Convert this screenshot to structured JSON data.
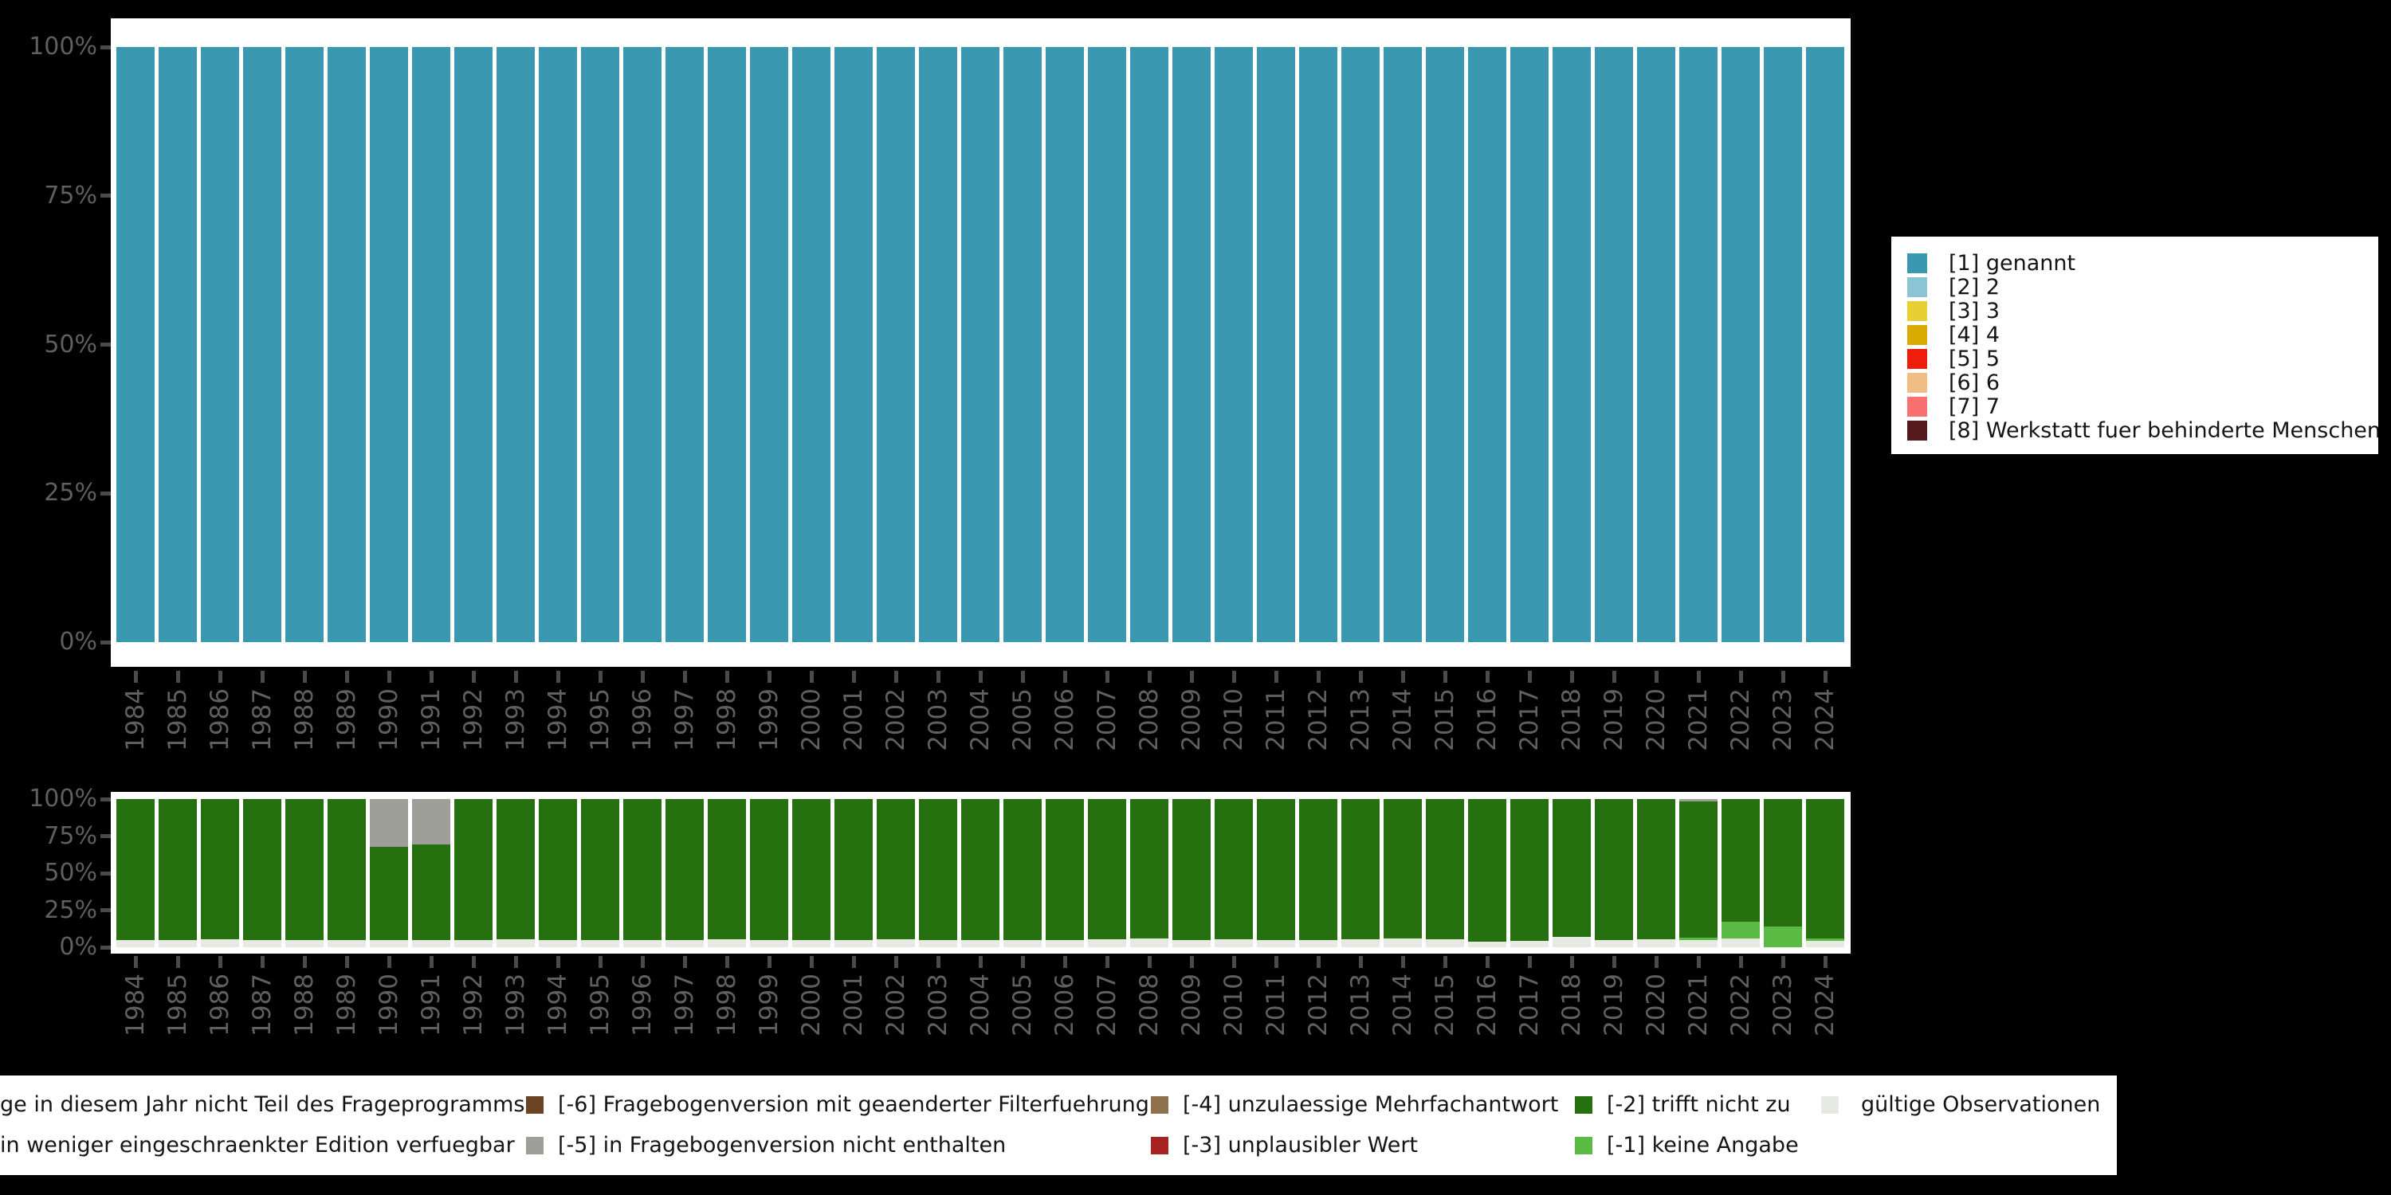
{
  "page_background": "#000000",
  "colors": {
    "genannt_teal": "#3a98b0",
    "trifft_nicht_zu_green": "#27700f",
    "keine_angabe_lightgreen": "#5abb44",
    "nicht_enthalten_gray": "#9f9f99",
    "gueltige_obs_lightgray": "#e6eae2",
    "unplausibel_red": "#a82222",
    "mehrfachantwort_brown": "#8f7150",
    "filterfuehrung_darkbrown": "#6b4425",
    "axis_text": "#5f5f5f",
    "axis_tick": "#4a4a4a"
  },
  "chart_data": [
    {
      "id": "valid-answers-by-year",
      "type": "bar",
      "stacked": true,
      "unit": "percent",
      "title": "",
      "xlabel": "",
      "ylabel": "",
      "ylim": [
        0,
        100
      ],
      "grid": false,
      "legend_position": "right",
      "yticks": [
        "100%",
        "75%",
        "50%",
        "25%",
        "0%"
      ],
      "categories": [
        "1984",
        "1985",
        "1986",
        "1987",
        "1988",
        "1989",
        "1990",
        "1991",
        "1992",
        "1993",
        "1994",
        "1995",
        "1996",
        "1997",
        "1998",
        "1999",
        "2000",
        "2001",
        "2002",
        "2003",
        "2004",
        "2005",
        "2006",
        "2007",
        "2008",
        "2009",
        "2010",
        "2011",
        "2012",
        "2013",
        "2014",
        "2015",
        "2016",
        "2017",
        "2018",
        "2019",
        "2020",
        "2021",
        "2022",
        "2023",
        "2024"
      ],
      "series": [
        {
          "name": "[1] genannt",
          "color": "#3a98b0",
          "values": [
            100,
            100,
            100,
            100,
            100,
            100,
            100,
            100,
            100,
            100,
            100,
            100,
            100,
            100,
            100,
            100,
            100,
            100,
            100,
            100,
            100,
            100,
            100,
            100,
            100,
            100,
            100,
            100,
            100,
            100,
            100,
            100,
            100,
            100,
            100,
            100,
            100,
            100,
            100,
            100,
            100
          ]
        }
      ]
    },
    {
      "id": "missing-codes-by-year",
      "type": "bar",
      "stacked": true,
      "unit": "percent",
      "title": "",
      "xlabel": "",
      "ylabel": "",
      "ylim": [
        0,
        100
      ],
      "grid": false,
      "legend_position": "bottom",
      "yticks": [
        "100%",
        "75%",
        "50%",
        "25%",
        "0%"
      ],
      "categories": [
        "1984",
        "1985",
        "1986",
        "1987",
        "1988",
        "1989",
        "1990",
        "1991",
        "1992",
        "1993",
        "1994",
        "1995",
        "1996",
        "1997",
        "1998",
        "1999",
        "2000",
        "2001",
        "2002",
        "2003",
        "2004",
        "2005",
        "2006",
        "2007",
        "2008",
        "2009",
        "2010",
        "2011",
        "2012",
        "2013",
        "2014",
        "2015",
        "2016",
        "2017",
        "2018",
        "2019",
        "2020",
        "2021",
        "2022",
        "2023",
        "2024"
      ],
      "stack_order_note": "series listed bottom-to-top",
      "series": [
        {
          "name": "gültige Observationen",
          "color": "#e6eae2",
          "values": [
            5,
            5,
            5.5,
            5,
            5,
            5,
            4.7,
            5,
            5,
            5.5,
            5,
            5,
            5,
            5,
            5.5,
            5,
            5,
            5,
            5.5,
            5,
            5,
            5,
            5,
            5.5,
            6,
            5,
            5.5,
            5,
            5,
            5.5,
            6,
            5.5,
            4,
            4.5,
            7,
            5,
            5.5,
            5,
            5.7,
            0,
            4.5
          ]
        },
        {
          "name": "[-1] keine Angabe",
          "color": "#5abb44",
          "values": [
            0,
            0,
            0,
            0,
            0,
            0,
            0,
            0,
            0,
            0,
            0,
            0,
            0,
            0,
            0,
            0,
            0,
            0,
            0,
            0,
            0,
            0,
            0,
            0,
            0,
            0,
            0,
            0,
            0,
            0,
            0,
            0,
            0,
            0,
            0,
            0,
            0,
            1.2,
            11.3,
            14,
            1.5
          ]
        },
        {
          "name": "[-2] trifft nicht zu",
          "color": "#27700f",
          "values": [
            95,
            95,
            94.5,
            95,
            95,
            95,
            63.3,
            64.5,
            95,
            94.5,
            95,
            95,
            95,
            95,
            94.5,
            95,
            95,
            95,
            94.5,
            95,
            95,
            95,
            95,
            94.5,
            94,
            95,
            94.5,
            95,
            95,
            94.5,
            94,
            94.5,
            96,
            95.5,
            93,
            95,
            94.5,
            92.3,
            83,
            86,
            94
          ]
        },
        {
          "name": "[-5] in Fragebogenversion nicht enthalten",
          "color": "#9f9f99",
          "values": [
            0,
            0,
            0,
            0,
            0,
            0,
            32,
            30.5,
            0,
            0,
            0,
            0,
            0,
            0,
            0,
            0,
            0,
            0,
            0,
            0,
            0,
            0,
            0,
            0,
            0,
            0,
            0,
            0,
            0,
            0,
            0,
            0,
            0,
            0,
            0,
            0,
            0,
            1.5,
            0,
            0,
            0
          ]
        }
      ]
    }
  ],
  "legend_right": {
    "items": [
      {
        "label": "[1] genannt",
        "color": "#3a98b0"
      },
      {
        "label": "[2] 2",
        "color": "#8cc3d5"
      },
      {
        "label": "[3] 3",
        "color": "#e8d034"
      },
      {
        "label": "[4] 4",
        "color": "#d9ab00"
      },
      {
        "label": "[5] 5",
        "color": "#ee1e0b"
      },
      {
        "label": "[6] 6",
        "color": "#f0bd85"
      },
      {
        "label": "[7] 7",
        "color": "#f8706f"
      },
      {
        "label": "[8] Werkstatt fuer behinderte Menschen",
        "color": "#551a1b"
      }
    ]
  },
  "legend_bottom": {
    "rows": [
      [
        {
          "label": "ge in diesem Jahr nicht Teil des Frageprogramms",
          "color": null
        },
        {
          "label": "[-6] Fragebogenversion mit geaenderter Filterfuehrung",
          "color": "#6b4425"
        },
        {
          "label": "[-4] unzulaessige Mehrfachantwort",
          "color": "#8f7150"
        },
        {
          "label": "[-2] trifft nicht zu",
          "color": "#27700f"
        },
        {
          "label": "gültige Observationen",
          "color": "#e6eae2"
        }
      ],
      [
        {
          "label": "in weniger eingeschraenkter Edition verfuegbar",
          "color": null
        },
        {
          "label": "[-5] in Fragebogenversion nicht enthalten",
          "color": "#9f9f99"
        },
        {
          "label": "[-3] unplausibler Wert",
          "color": "#a82222"
        },
        {
          "label": "[-1] keine Angabe",
          "color": "#5abb44"
        }
      ]
    ]
  }
}
